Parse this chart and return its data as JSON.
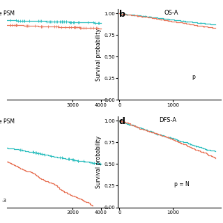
{
  "panel_labels": [
    "b",
    "d"
  ],
  "panel_titles_right": [
    "OS-A",
    "DFS-A"
  ],
  "ylabel": "Survival probability",
  "yticks": [
    0.0,
    0.25,
    0.5,
    0.75,
    1.0
  ],
  "color_teal": "#2bbebe",
  "color_salmon": "#e8765a",
  "p_text_b": "p",
  "p_text_d": "p = N"
}
